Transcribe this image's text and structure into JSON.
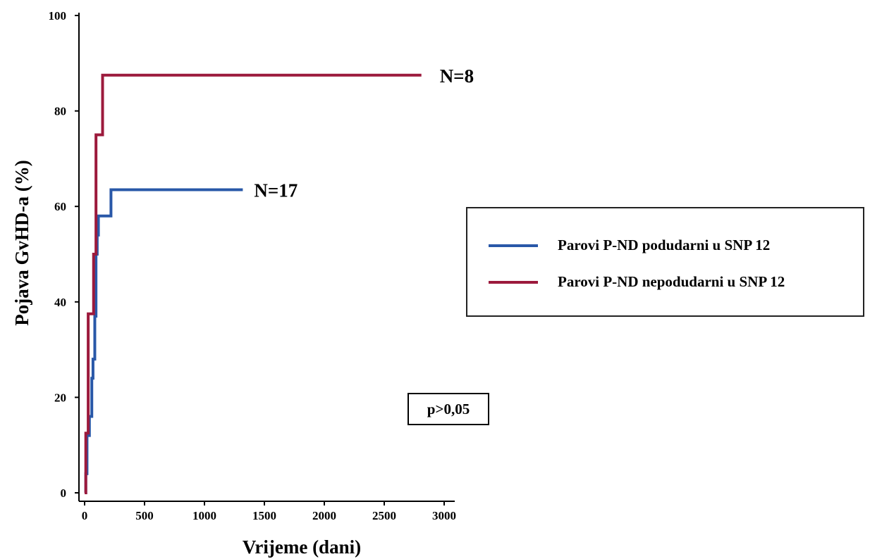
{
  "chart_data": {
    "type": "line",
    "step": true,
    "xlabel": "Vrijeme (dani)",
    "ylabel": "Pojava GvHD-a (%)",
    "xlim": [
      0,
      3000
    ],
    "ylim": [
      0,
      100
    ],
    "x_ticks": [
      "0",
      "500",
      "1000",
      "1500",
      "2000",
      "2500",
      "3000"
    ],
    "y_ticks": [
      "0",
      "20",
      "40",
      "60",
      "80",
      "100"
    ],
    "grid": false,
    "legend_position": "right",
    "series": [
      {
        "name": "Parovi P-ND podudarni u SNP 12",
        "color": "#2958a8",
        "end_label": "N=17",
        "points": [
          [
            0,
            0
          ],
          [
            10,
            0
          ],
          [
            10,
            4
          ],
          [
            20,
            4
          ],
          [
            20,
            12
          ],
          [
            40,
            12
          ],
          [
            40,
            16
          ],
          [
            60,
            16
          ],
          [
            60,
            24
          ],
          [
            70,
            24
          ],
          [
            70,
            28
          ],
          [
            85,
            28
          ],
          [
            85,
            37
          ],
          [
            95,
            37
          ],
          [
            95,
            50
          ],
          [
            105,
            50
          ],
          [
            105,
            54
          ],
          [
            115,
            54
          ],
          [
            115,
            58
          ],
          [
            220,
            58
          ],
          [
            220,
            63.5
          ],
          [
            1320,
            63.5
          ]
        ]
      },
      {
        "name": "Parovi P-ND nepodudarni u SNP 12",
        "color": "#9c1a3c",
        "end_label": "N=8",
        "points": [
          [
            0,
            0
          ],
          [
            10,
            0
          ],
          [
            10,
            12.5
          ],
          [
            30,
            12.5
          ],
          [
            30,
            37.5
          ],
          [
            75,
            37.5
          ],
          [
            75,
            50
          ],
          [
            95,
            50
          ],
          [
            95,
            75
          ],
          [
            150,
            75
          ],
          [
            150,
            87.5
          ],
          [
            2810,
            87.5
          ]
        ]
      }
    ],
    "annotation": "p>0,05"
  }
}
